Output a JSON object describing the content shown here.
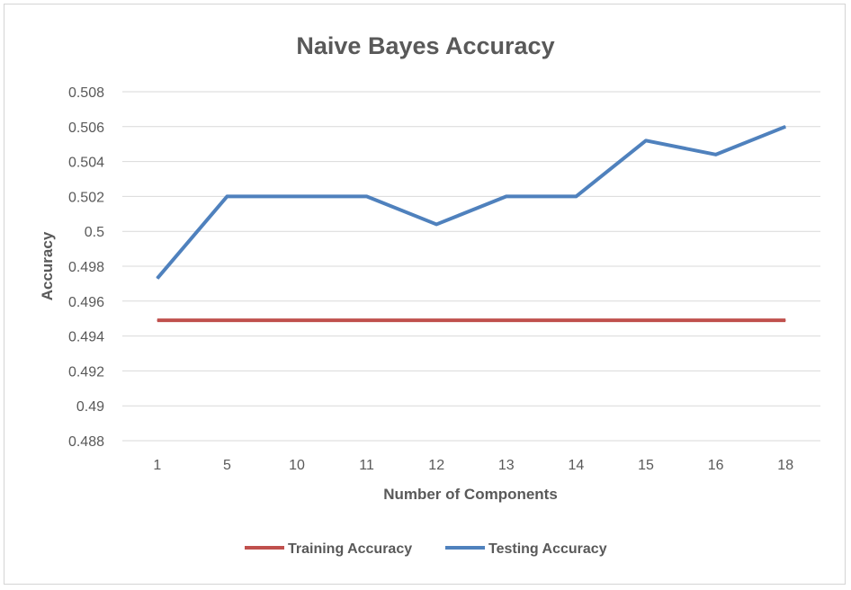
{
  "chart_data": {
    "type": "line",
    "title": "Naive Bayes Accuracy",
    "xlabel": "Number of Components",
    "ylabel": "Accuracy",
    "categories": [
      "1",
      "5",
      "10",
      "11",
      "12",
      "13",
      "14",
      "15",
      "16",
      "18"
    ],
    "ylim": [
      0.488,
      0.508
    ],
    "yticks": [
      0.488,
      0.49,
      0.492,
      0.494,
      0.496,
      0.498,
      0.5,
      0.502,
      0.504,
      0.506,
      0.508
    ],
    "ytick_labels": [
      "0.488",
      "0.49",
      "0.492",
      "0.494",
      "0.496",
      "0.498",
      "0.5",
      "0.502",
      "0.504",
      "0.506",
      "0.508"
    ],
    "grid": "horizontal",
    "legend_position": "bottom",
    "series": [
      {
        "name": "Training Accuracy",
        "color": "#c0504d",
        "values": [
          0.4949,
          0.4949,
          0.4949,
          0.4949,
          0.4949,
          0.4949,
          0.4949,
          0.4949,
          0.4949,
          0.4949
        ]
      },
      {
        "name": "Testing Accuracy",
        "color": "#4f81bd",
        "values": [
          0.4973,
          0.502,
          0.502,
          0.502,
          0.5004,
          0.502,
          0.502,
          0.5052,
          0.5044,
          0.506
        ]
      }
    ]
  }
}
